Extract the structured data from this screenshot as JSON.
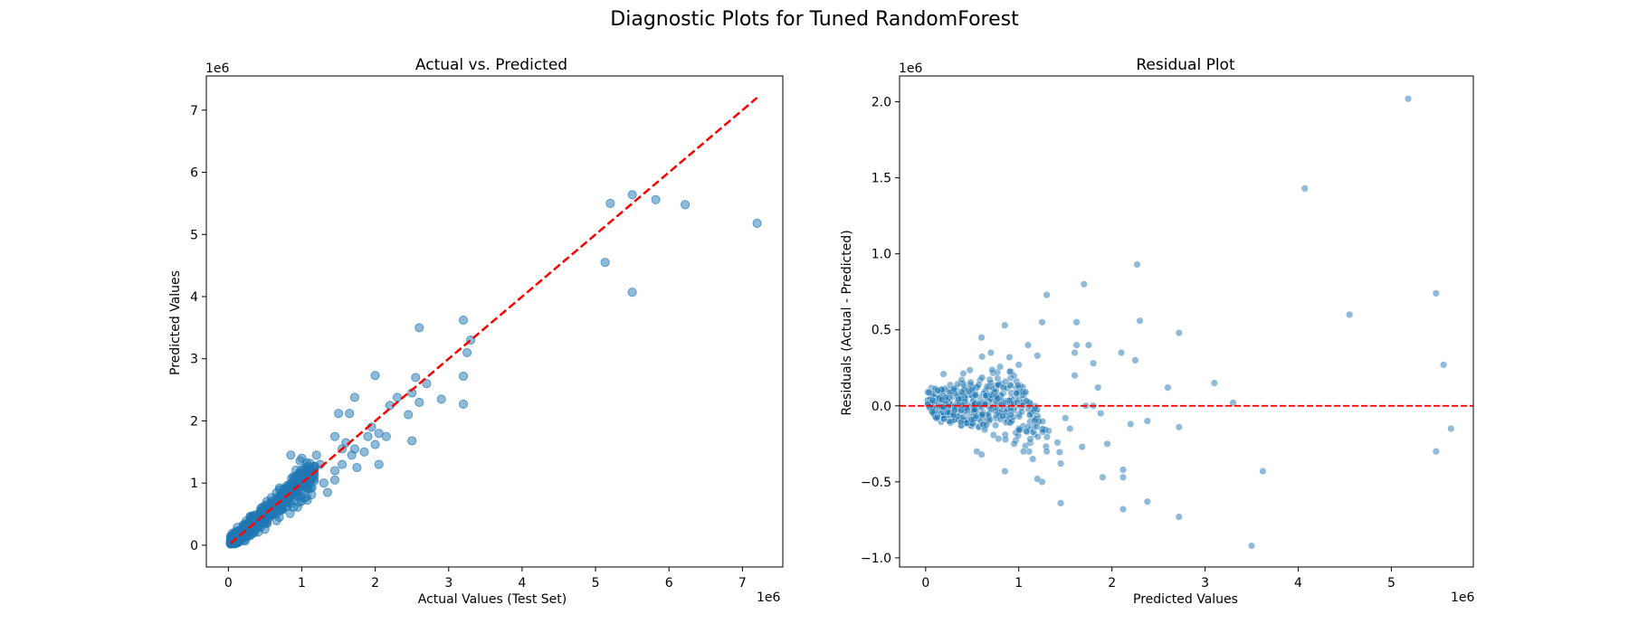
{
  "figure": {
    "suptitle": "Diagnostic Plots for Tuned RandomForest"
  },
  "colors": {
    "points": "#1f77b4",
    "reference_line": "#ff0000",
    "axes": "#000000",
    "background": "#ffffff"
  },
  "chart_data": [
    {
      "type": "scatter",
      "title": "Actual vs. Predicted",
      "xlabel": "Actual Values (Test Set)",
      "ylabel": "Predicted Values",
      "x_offset_label": "1e6",
      "y_offset_label": "1e6",
      "xlim": [
        -0.3,
        7.55
      ],
      "ylim": [
        -0.35,
        7.55
      ],
      "xticks": [
        0,
        1,
        2,
        3,
        4,
        5,
        6,
        7
      ],
      "yticks": [
        0,
        1,
        2,
        3,
        4,
        5,
        6,
        7
      ],
      "grid": false,
      "units_note": "values in millions (1e6)",
      "reference_line": {
        "style": "dashed",
        "from": [
          0.03,
          0.03
        ],
        "to": [
          7.2,
          7.2
        ]
      },
      "points": [
        [
          7.2,
          5.18
        ],
        [
          6.22,
          5.48
        ],
        [
          5.82,
          5.56
        ],
        [
          5.5,
          5.64
        ],
        [
          5.2,
          5.5
        ],
        [
          5.13,
          4.55
        ],
        [
          5.5,
          4.07
        ],
        [
          3.2,
          3.62
        ],
        [
          3.3,
          3.3
        ],
        [
          3.25,
          3.1
        ],
        [
          3.2,
          2.72
        ],
        [
          3.2,
          2.27
        ],
        [
          2.9,
          2.35
        ],
        [
          2.6,
          3.5
        ],
        [
          2.55,
          2.7
        ],
        [
          2.7,
          2.6
        ],
        [
          2.6,
          2.3
        ],
        [
          2.5,
          2.45
        ],
        [
          2.45,
          2.1
        ],
        [
          2.5,
          1.68
        ],
        [
          2.0,
          2.73
        ],
        [
          2.3,
          2.38
        ],
        [
          2.2,
          2.25
        ],
        [
          2.15,
          1.75
        ],
        [
          2.05,
          1.8
        ],
        [
          2.0,
          1.62
        ],
        [
          2.05,
          1.3
        ],
        [
          1.72,
          2.38
        ],
        [
          1.65,
          2.12
        ],
        [
          1.5,
          2.12
        ],
        [
          1.45,
          1.75
        ],
        [
          1.6,
          1.65
        ],
        [
          1.72,
          1.55
        ],
        [
          1.75,
          1.25
        ],
        [
          1.55,
          1.3
        ],
        [
          1.9,
          1.75
        ],
        [
          1.85,
          1.5
        ],
        [
          1.95,
          1.9
        ],
        [
          1.45,
          1.05
        ],
        [
          1.35,
          0.85
        ],
        [
          1.25,
          1.3
        ],
        [
          1.1,
          1.1
        ],
        [
          1.2,
          1.45
        ],
        [
          1.3,
          1.0
        ],
        [
          0.85,
          1.45
        ],
        [
          1.0,
          1.4
        ],
        [
          1.45,
          1.2
        ],
        [
          1.55,
          1.55
        ],
        [
          1.68,
          1.45
        ]
      ]
    },
    {
      "type": "scatter",
      "title": "Residual Plot",
      "xlabel": "Predicted Values",
      "ylabel": "Residuals (Actual - Predicted)",
      "x_offset_label": "1e6",
      "y_offset_label": "1e6",
      "xlim": [
        -0.28,
        5.88
      ],
      "ylim": [
        -1.06,
        2.17
      ],
      "xticks": [
        0,
        1,
        2,
        3,
        4,
        5
      ],
      "yticks": [
        -1.0,
        -0.5,
        0.0,
        0.5,
        1.0,
        1.5,
        2.0
      ],
      "ytick_labels": [
        "−1.0",
        "−0.5",
        "0.0",
        "0.5",
        "1.0",
        "1.5",
        "2.0"
      ],
      "grid": false,
      "units_note": "values in millions (1e6)",
      "reference_line": {
        "style": "dashed",
        "y": 0
      },
      "points": [
        [
          5.18,
          2.02
        ],
        [
          4.07,
          1.43
        ],
        [
          5.48,
          0.74
        ],
        [
          4.55,
          0.6
        ],
        [
          5.56,
          0.27
        ],
        [
          5.64,
          -0.15
        ],
        [
          5.48,
          -0.3
        ],
        [
          3.62,
          -0.43
        ],
        [
          3.5,
          -0.92
        ],
        [
          3.1,
          0.15
        ],
        [
          3.3,
          0.02
        ],
        [
          2.72,
          0.48
        ],
        [
          2.72,
          -0.14
        ],
        [
          2.72,
          -0.73
        ],
        [
          2.6,
          0.12
        ],
        [
          2.38,
          -0.1
        ],
        [
          2.38,
          -0.63
        ],
        [
          2.3,
          0.56
        ],
        [
          2.27,
          0.93
        ],
        [
          2.25,
          0.3
        ],
        [
          2.2,
          -0.12
        ],
        [
          2.12,
          -0.42
        ],
        [
          2.12,
          -0.47
        ],
        [
          2.12,
          -0.68
        ],
        [
          2.1,
          0.35
        ],
        [
          1.95,
          -0.25
        ],
        [
          1.9,
          -0.47
        ],
        [
          1.85,
          0.12
        ],
        [
          1.8,
          0.28
        ],
        [
          1.75,
          0.4
        ],
        [
          1.7,
          0.8
        ],
        [
          1.68,
          -0.27
        ],
        [
          1.62,
          0.55
        ],
        [
          1.62,
          0.4
        ],
        [
          1.6,
          0.2
        ],
        [
          1.55,
          -0.15
        ],
        [
          1.5,
          -0.08
        ],
        [
          1.45,
          -0.64
        ],
        [
          1.45,
          -0.38
        ],
        [
          1.3,
          0.73
        ],
        [
          1.3,
          -0.3
        ],
        [
          1.25,
          0.55
        ],
        [
          1.25,
          -0.5
        ],
        [
          1.2,
          0.33
        ],
        [
          1.1,
          0.4
        ],
        [
          1.0,
          0.27
        ],
        [
          0.85,
          0.53
        ],
        [
          0.6,
          0.45
        ],
        [
          0.85,
          -0.43
        ],
        [
          0.7,
          0.35
        ],
        [
          1.15,
          -0.35
        ],
        [
          1.05,
          -0.3
        ],
        [
          0.95,
          -0.25
        ],
        [
          0.55,
          -0.3
        ],
        [
          0.9,
          0.32
        ],
        [
          0.6,
          -0.32
        ],
        [
          1.2,
          -0.48
        ],
        [
          1.8,
          0.0
        ],
        [
          1.72,
          0.0
        ],
        [
          1.88,
          -0.05
        ],
        [
          1.6,
          0.35
        ]
      ]
    }
  ]
}
